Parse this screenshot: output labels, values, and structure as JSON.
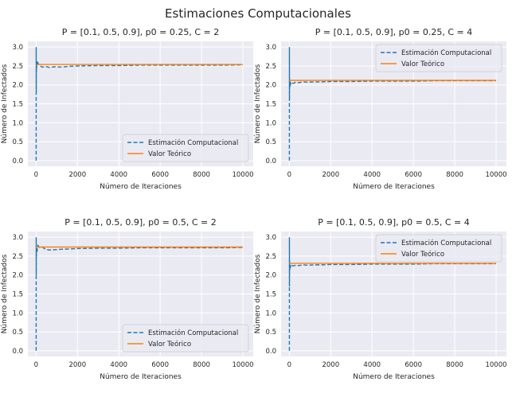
{
  "figure": {
    "suptitle": "Estimaciones Computacionales"
  },
  "chart_data": [
    {
      "type": "line",
      "title": "P = [0.1, 0.5, 0.9], p0 = 0.25, C = 2",
      "xlabel": "Número de Iteraciones",
      "ylabel": "Número de Infectados",
      "xlim": [
        -400,
        10500
      ],
      "ylim": [
        -0.15,
        3.15
      ],
      "xticks": [
        0,
        2000,
        4000,
        6000,
        8000,
        10000
      ],
      "yticks": [
        0.0,
        0.5,
        1.0,
        1.5,
        2.0,
        2.5,
        3.0
      ],
      "grid": true,
      "legend": "lower-right",
      "series": [
        {
          "name": "Estimación Computacional",
          "style": "dashed",
          "color": "#1f77b4",
          "x": [
            1,
            3,
            6,
            10,
            15,
            22,
            30,
            45,
            60,
            90,
            130,
            200,
            300,
            450,
            650,
            900,
            1200,
            1600,
            2000,
            3000,
            4000,
            5000,
            6000,
            7000,
            8000,
            9000,
            10000
          ],
          "y": [
            0.0,
            3.0,
            1.8,
            2.6,
            2.35,
            2.5,
            2.45,
            2.62,
            2.55,
            2.58,
            2.52,
            2.5,
            2.47,
            2.49,
            2.46,
            2.48,
            2.47,
            2.49,
            2.5,
            2.51,
            2.51,
            2.52,
            2.52,
            2.52,
            2.52,
            2.52,
            2.53
          ]
        },
        {
          "name": "Valor Teórico",
          "style": "solid",
          "color": "#ff7f0e",
          "x": [
            0,
            10000
          ],
          "y": [
            2.54,
            2.54
          ]
        }
      ]
    },
    {
      "type": "line",
      "title": "P = [0.1, 0.5, 0.9], p0 = 0.25, C = 4",
      "xlabel": "Número de Iteraciones",
      "ylabel": "Número de Infectados",
      "xlim": [
        -400,
        10500
      ],
      "ylim": [
        -0.15,
        3.15
      ],
      "xticks": [
        0,
        2000,
        4000,
        6000,
        8000,
        10000
      ],
      "yticks": [
        0.0,
        0.5,
        1.0,
        1.5,
        2.0,
        2.5,
        3.0
      ],
      "grid": true,
      "legend": "upper-right",
      "series": [
        {
          "name": "Estimación Computacional",
          "style": "dashed",
          "color": "#1f77b4",
          "x": [
            1,
            3,
            6,
            10,
            15,
            22,
            30,
            45,
            60,
            90,
            130,
            200,
            300,
            450,
            650,
            900,
            1200,
            1600,
            2000,
            3000,
            4000,
            5000,
            6000,
            7000,
            8000,
            9000,
            10000
          ],
          "y": [
            0.0,
            3.0,
            1.6,
            2.2,
            1.9,
            2.0,
            2.05,
            1.98,
            2.05,
            2.02,
            2.06,
            2.04,
            2.07,
            2.06,
            2.08,
            2.07,
            2.08,
            2.08,
            2.09,
            2.09,
            2.1,
            2.1,
            2.1,
            2.11,
            2.11,
            2.11,
            2.11
          ]
        },
        {
          "name": "Valor Teórico",
          "style": "solid",
          "color": "#ff7f0e",
          "x": [
            0,
            10000
          ],
          "y": [
            2.12,
            2.12
          ]
        }
      ]
    },
    {
      "type": "line",
      "title": "P = [0.1, 0.5, 0.9], p0 = 0.5, C = 2",
      "xlabel": "Número de Iteraciones",
      "ylabel": "Número de Infectados",
      "xlim": [
        -400,
        10500
      ],
      "ylim": [
        -0.15,
        3.15
      ],
      "xticks": [
        0,
        2000,
        4000,
        6000,
        8000,
        10000
      ],
      "yticks": [
        0.0,
        0.5,
        1.0,
        1.5,
        2.0,
        2.5,
        3.0
      ],
      "grid": true,
      "legend": "lower-right",
      "series": [
        {
          "name": "Estimación Computacional",
          "style": "dashed",
          "color": "#1f77b4",
          "x": [
            1,
            3,
            6,
            10,
            15,
            22,
            30,
            45,
            60,
            90,
            130,
            200,
            300,
            450,
            650,
            900,
            1200,
            1600,
            2000,
            3000,
            4000,
            5000,
            6000,
            7000,
            8000,
            9000,
            10000
          ],
          "y": [
            0.0,
            3.0,
            2.0,
            2.8,
            2.5,
            2.6,
            2.7,
            2.62,
            2.7,
            2.78,
            2.75,
            2.72,
            2.74,
            2.68,
            2.66,
            2.67,
            2.68,
            2.69,
            2.7,
            2.71,
            2.71,
            2.72,
            2.72,
            2.72,
            2.72,
            2.72,
            2.73
          ]
        },
        {
          "name": "Valor Teórico",
          "style": "solid",
          "color": "#ff7f0e",
          "x": [
            0,
            10000
          ],
          "y": [
            2.74,
            2.74
          ]
        }
      ]
    },
    {
      "type": "line",
      "title": "P = [0.1, 0.5, 0.9], p0 = 0.5, C = 4",
      "xlabel": "Número de Iteraciones",
      "ylabel": "Número de Infectados",
      "xlim": [
        -400,
        10500
      ],
      "ylim": [
        -0.15,
        3.15
      ],
      "xticks": [
        0,
        2000,
        4000,
        6000,
        8000,
        10000
      ],
      "yticks": [
        0.0,
        0.5,
        1.0,
        1.5,
        2.0,
        2.5,
        3.0
      ],
      "grid": true,
      "legend": "upper-right",
      "series": [
        {
          "name": "Estimación Computacional",
          "style": "dashed",
          "color": "#1f77b4",
          "x": [
            1,
            3,
            6,
            10,
            15,
            22,
            30,
            45,
            60,
            90,
            130,
            200,
            300,
            450,
            650,
            900,
            1200,
            1600,
            2000,
            3000,
            4000,
            5000,
            6000,
            7000,
            8000,
            9000,
            10000
          ],
          "y": [
            0.0,
            3.0,
            1.7,
            2.4,
            2.1,
            2.2,
            2.25,
            2.18,
            2.26,
            2.22,
            2.25,
            2.24,
            2.26,
            2.25,
            2.27,
            2.26,
            2.27,
            2.27,
            2.28,
            2.28,
            2.29,
            2.29,
            2.29,
            2.3,
            2.3,
            2.3,
            2.3
          ]
        },
        {
          "name": "Valor Teórico",
          "style": "solid",
          "color": "#ff7f0e",
          "x": [
            0,
            10000
          ],
          "y": [
            2.31,
            2.31
          ]
        }
      ]
    }
  ]
}
